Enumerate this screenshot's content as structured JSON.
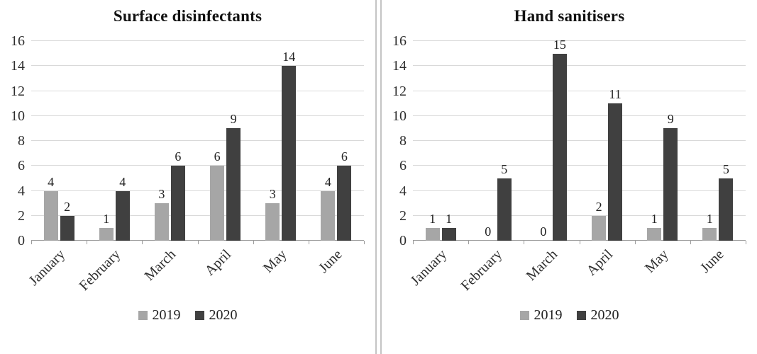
{
  "chart_data": [
    {
      "type": "bar",
      "title": "Surface disinfectants",
      "categories": [
        "January",
        "February",
        "March",
        "April",
        "May",
        "June"
      ],
      "series": [
        {
          "name": "2019",
          "color": "#a6a6a6",
          "values": [
            4,
            1,
            3,
            6,
            3,
            4
          ]
        },
        {
          "name": "2020",
          "color": "#404040",
          "values": [
            2,
            4,
            6,
            9,
            14,
            6
          ]
        }
      ],
      "ylim": [
        0,
        16
      ],
      "yticks": [
        0,
        2,
        4,
        6,
        8,
        10,
        12,
        14,
        16
      ],
      "grid": true,
      "data_labels": true,
      "legend_position": "bottom"
    },
    {
      "type": "bar",
      "title": "Hand sanitisers",
      "categories": [
        "January",
        "February",
        "March",
        "April",
        "May",
        "June"
      ],
      "series": [
        {
          "name": "2019",
          "color": "#a6a6a6",
          "values": [
            1,
            0,
            0,
            2,
            1,
            1
          ]
        },
        {
          "name": "2020",
          "color": "#404040",
          "values": [
            1,
            5,
            15,
            11,
            9,
            5
          ]
        }
      ],
      "ylim": [
        0,
        16
      ],
      "yticks": [
        0,
        2,
        4,
        6,
        8,
        10,
        12,
        14,
        16
      ],
      "grid": true,
      "data_labels": true,
      "legend_position": "bottom"
    }
  ]
}
